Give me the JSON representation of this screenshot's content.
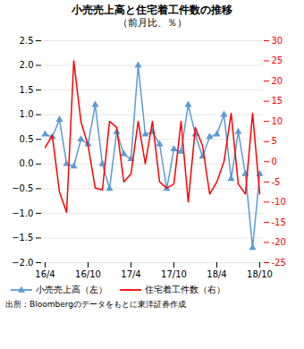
{
  "chart_data": {
    "type": "line",
    "title": "小売売上高と住宅着工件数の推移",
    "subtitle": "（前月比、％）",
    "annotations": [
      "出所：Bloombergのデータをもとに東洋証券作成"
    ],
    "categories": [
      "16/4",
      null,
      null,
      null,
      null,
      null,
      "16/10",
      null,
      null,
      null,
      null,
      null,
      "17/4",
      null,
      null,
      null,
      null,
      null,
      "17/10",
      null,
      null,
      null,
      null,
      null,
      "18/4",
      null,
      null,
      null,
      null,
      null,
      "18/10"
    ],
    "series": [
      {
        "name": "小売売上高（左）",
        "color": "#5B9BD5",
        "marker": "triangle",
        "axis": "y",
        "values": [
          0.6,
          0.55,
          0.9,
          0.0,
          -0.05,
          0.5,
          0.4,
          1.2,
          0.0,
          -0.5,
          0.65,
          0.2,
          0.1,
          2.0,
          0.6,
          0.65,
          0.4,
          -0.5,
          0.3,
          0.25,
          1.2,
          0.6,
          0.15,
          0.55,
          0.6,
          1.0,
          -0.3,
          0.65,
          -0.2,
          -1.7,
          -0.2
        ]
      },
      {
        "name": "住宅着工件数（右）",
        "color": "#FF0000",
        "axis": "y2",
        "values": [
          3.5,
          6.5,
          -7.5,
          -12.5,
          25.0,
          10.0,
          4.0,
          -6.5,
          -7.0,
          10.0,
          8.5,
          -5.0,
          -3.0,
          10.0,
          -0.5,
          10.0,
          -5.0,
          -6.5,
          -5.5,
          10.0,
          -10.0,
          8.5,
          4.0,
          -8.0,
          -5.0,
          0.0,
          12.0,
          -5.5,
          -8.0,
          12.0,
          -8.0
        ]
      }
    ],
    "ylim": [
      -2.0,
      2.5
    ],
    "yticks": [
      {
        "value": -2.0,
        "label": "−2.0"
      },
      {
        "value": -1.5,
        "label": "−1.5"
      },
      {
        "value": -1.0,
        "label": "−1.0"
      },
      {
        "value": -0.5,
        "label": "−0.5"
      },
      {
        "value": 0.0,
        "label": "0.0"
      },
      {
        "value": 0.5,
        "label": "0.5"
      },
      {
        "value": 1.0,
        "label": "1.0"
      },
      {
        "value": 1.5,
        "label": "1.5"
      },
      {
        "value": 2.0,
        "label": "2.0"
      },
      {
        "value": 2.5,
        "label": "2.5"
      }
    ],
    "y2lim": [
      -25.0,
      30.0
    ],
    "y2ticks": [
      -25,
      -20,
      -15,
      -10,
      -5,
      0,
      5,
      10,
      15,
      20,
      25,
      30
    ],
    "grid": true,
    "legend": "lower left"
  }
}
